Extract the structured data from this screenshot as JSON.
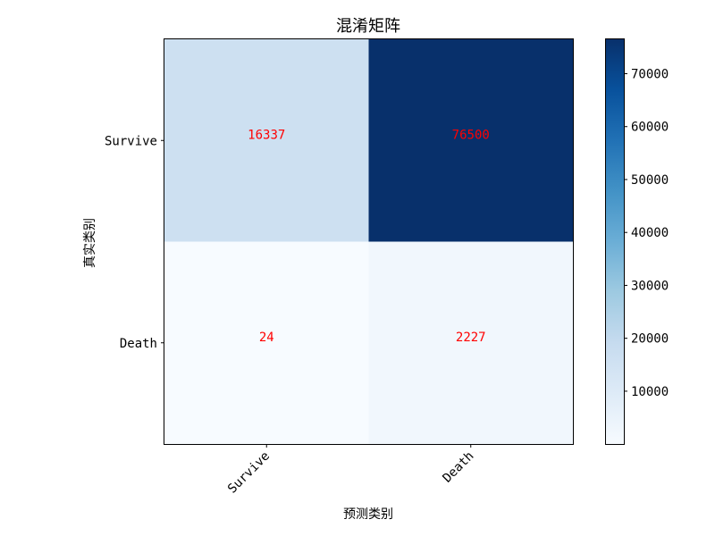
{
  "chart_data": {
    "type": "heatmap",
    "title": "混淆矩阵",
    "xlabel": "预测类别",
    "ylabel": "真实类别",
    "x_categories": [
      "Survive",
      "Death"
    ],
    "y_categories": [
      "Survive",
      "Death"
    ],
    "values": [
      [
        16337,
        76500
      ],
      [
        24,
        2227
      ]
    ],
    "cell_labels": [
      [
        "16337",
        "76500"
      ],
      [
        "24",
        "2227"
      ]
    ],
    "colormap": "Blues",
    "value_range": [
      24,
      76500
    ],
    "annotation_color": "#ff0000",
    "colorbar": {
      "ticks": [
        10000,
        20000,
        30000,
        40000,
        50000,
        60000,
        70000
      ],
      "tick_labels": [
        "10000",
        "20000",
        "30000",
        "40000",
        "50000",
        "60000",
        "70000"
      ]
    },
    "grid": false
  }
}
